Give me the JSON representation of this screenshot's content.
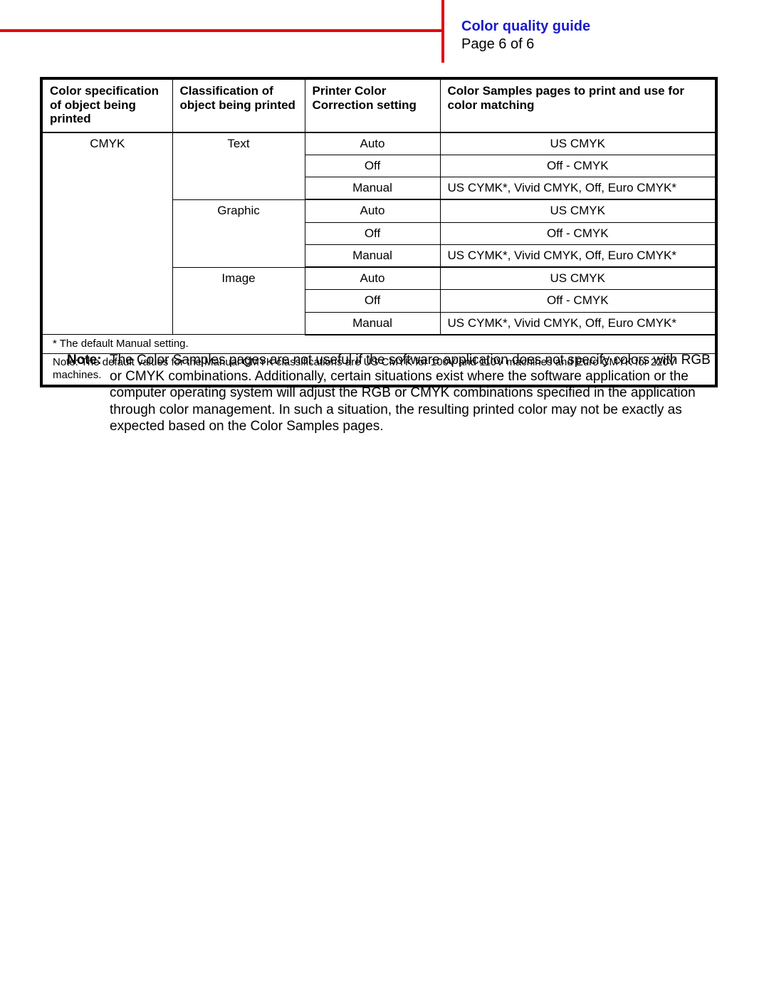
{
  "colors": {
    "accent_red": "#e30613",
    "title_blue": "#1a1ace",
    "border_black": "#000000",
    "background": "#ffffff"
  },
  "header": {
    "title": "Color quality guide",
    "page": "Page 6 of 6"
  },
  "table": {
    "columns": [
      "Color specification of object being printed",
      "Classification of object being printed",
      "Printer Color Correction setting",
      "Color Samples pages to print and use for color matching"
    ],
    "col1_value": "CMYK",
    "groups": [
      {
        "classification": "Text",
        "rows": [
          {
            "setting": "Auto",
            "samples": "US CMYK"
          },
          {
            "setting": "Off",
            "samples": "Off - CMYK"
          },
          {
            "setting": "Manual",
            "samples": "US CYMK*, Vivid CMYK, Off, Euro CMYK*"
          }
        ]
      },
      {
        "classification": "Graphic",
        "rows": [
          {
            "setting": "Auto",
            "samples": "US CMYK"
          },
          {
            "setting": "Off",
            "samples": "Off - CMYK"
          },
          {
            "setting": "Manual",
            "samples": "US CYMK*, Vivid CMYK, Off, Euro CMYK*"
          }
        ]
      },
      {
        "classification": "Image",
        "rows": [
          {
            "setting": "Auto",
            "samples": "US CMYK"
          },
          {
            "setting": "Off",
            "samples": "Off - CMYK"
          },
          {
            "setting": "Manual",
            "samples": "US CYMK*, Vivid CMYK, Off, Euro CMYK*"
          }
        ]
      }
    ],
    "footnotes": [
      "* The default Manual setting.",
      "Note: The default values for the Manual CMYK classifications are US CMYK for 100V and 110V machines and Euro CMYK for 220V machines."
    ]
  },
  "note": {
    "label": "Note:",
    "text": "The Color Samples pages are not useful if the software application does not specify colors with RGB or CMYK combinations. Additionally, certain situations exist where the software application or the computer operating system will adjust the RGB or CMYK combinations specified in the application through color management. In such a situation, the resulting printed color may not be exactly as expected based on the Color Samples pages."
  }
}
